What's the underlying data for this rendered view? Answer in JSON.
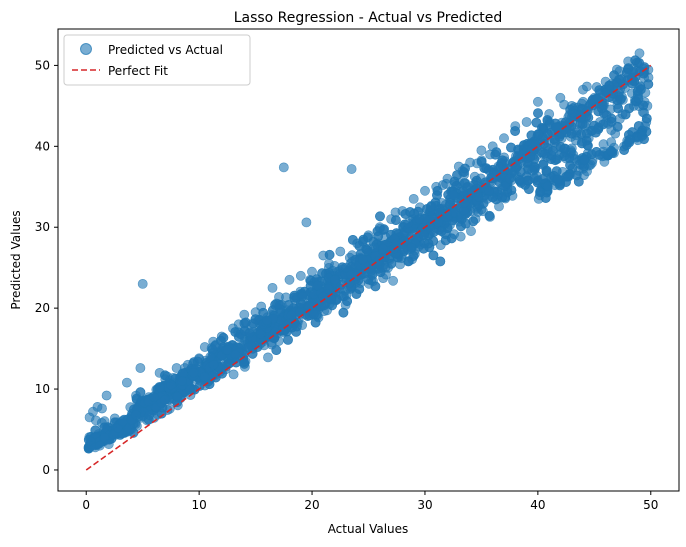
{
  "chart_data": {
    "type": "scatter",
    "title": "Lasso Regression - Actual vs Predicted",
    "xlabel": "Actual Values",
    "ylabel": "Predicted Values",
    "xlim": [
      -2.5,
      52.5
    ],
    "ylim": [
      -2.6,
      54.5
    ],
    "xticks": [
      0,
      10,
      20,
      30,
      40,
      50
    ],
    "yticks": [
      0,
      10,
      20,
      30,
      40,
      50
    ],
    "grid": false,
    "legend": {
      "placement": "top-left",
      "entries": [
        {
          "label": "Predicted vs Actual",
          "kind": "marker",
          "color": "#1f77b4"
        },
        {
          "label": "Perfect Fit",
          "kind": "dashed-line",
          "color": "#d62728"
        }
      ]
    },
    "series": [
      {
        "name": "Predicted vs Actual",
        "color": "#1f77b4",
        "alpha": 0.6,
        "cluster_model": {
          "note": "dense cloud along y ≈ 0.9x + 3 with spread increasing near the top"
        },
        "points": [
          [
            0.3,
            6.5
          ],
          [
            0.6,
            7.2
          ],
          [
            1.0,
            7.8
          ],
          [
            1.4,
            7.6
          ],
          [
            1.8,
            9.2
          ],
          [
            0.4,
            3.5
          ],
          [
            0.8,
            2.8
          ],
          [
            1.2,
            3.0
          ],
          [
            1.6,
            4.0
          ],
          [
            2.0,
            3.2
          ],
          [
            2.4,
            4.4
          ],
          [
            2.8,
            5.2
          ],
          [
            3.2,
            6.0
          ],
          [
            3.6,
            10.8
          ],
          [
            4.0,
            6.2
          ],
          [
            4.4,
            6.8
          ],
          [
            4.8,
            12.6
          ],
          [
            5.0,
            23.0
          ],
          [
            5.5,
            8.5
          ],
          [
            6.0,
            9.0
          ],
          [
            6.5,
            12.0
          ],
          [
            7.0,
            11.2
          ],
          [
            7.5,
            10.5
          ],
          [
            8.0,
            12.6
          ],
          [
            8.5,
            11.0
          ],
          [
            9.0,
            13.0
          ],
          [
            9.5,
            12.0
          ],
          [
            10.0,
            13.8
          ],
          [
            10.5,
            15.2
          ],
          [
            11.0,
            14.0
          ],
          [
            11.5,
            15.5
          ],
          [
            12.0,
            16.5
          ],
          [
            12.5,
            14.8
          ],
          [
            13.0,
            17.5
          ],
          [
            13.5,
            18.0
          ],
          [
            14.0,
            19.2
          ],
          [
            14.5,
            17.0
          ],
          [
            15.0,
            19.5
          ],
          [
            15.5,
            20.2
          ],
          [
            16.0,
            18.5
          ],
          [
            16.5,
            22.5
          ],
          [
            17.0,
            20.5
          ],
          [
            17.5,
            37.4
          ],
          [
            18.0,
            23.5
          ],
          [
            18.5,
            21.0
          ],
          [
            19.0,
            24.0
          ],
          [
            19.5,
            30.6
          ],
          [
            20.0,
            24.5
          ],
          [
            20.5,
            22.8
          ],
          [
            21.0,
            26.5
          ],
          [
            21.5,
            25.5
          ],
          [
            22.0,
            23.5
          ],
          [
            22.5,
            27.0
          ],
          [
            23.0,
            25.0
          ],
          [
            23.5,
            37.2
          ],
          [
            24.0,
            28.0
          ],
          [
            24.5,
            26.0
          ],
          [
            25.0,
            29.0
          ],
          [
            25.5,
            27.5
          ],
          [
            26.0,
            30.0
          ],
          [
            26.5,
            25.0
          ],
          [
            27.0,
            31.0
          ],
          [
            27.5,
            28.0
          ],
          [
            28.0,
            32.0
          ],
          [
            28.5,
            30.5
          ],
          [
            29.0,
            33.5
          ],
          [
            29.5,
            31.0
          ],
          [
            30.0,
            34.5
          ],
          [
            30.5,
            32.5
          ],
          [
            31.0,
            35.0
          ],
          [
            31.5,
            33.0
          ],
          [
            32.0,
            36.0
          ],
          [
            32.5,
            34.0
          ],
          [
            33.0,
            37.5
          ],
          [
            33.5,
            33.0
          ],
          [
            34.0,
            38.0
          ],
          [
            34.5,
            35.5
          ],
          [
            35.0,
            39.5
          ],
          [
            35.5,
            33.5
          ],
          [
            36.0,
            40.0
          ],
          [
            36.5,
            37.5
          ],
          [
            37.0,
            41.0
          ],
          [
            37.5,
            36.0
          ],
          [
            38.0,
            42.5
          ],
          [
            38.5,
            38.0
          ],
          [
            39.0,
            43.0
          ],
          [
            39.5,
            37.0
          ],
          [
            40.0,
            45.5
          ],
          [
            40.5,
            39.0
          ],
          [
            41.0,
            44.0
          ],
          [
            41.5,
            40.5
          ],
          [
            42.0,
            46.0
          ],
          [
            42.5,
            38.5
          ],
          [
            43.0,
            45.0
          ],
          [
            43.5,
            42.0
          ],
          [
            44.0,
            47.0
          ],
          [
            44.5,
            41.0
          ],
          [
            45.0,
            46.0
          ],
          [
            45.5,
            43.0
          ],
          [
            46.0,
            48.0
          ],
          [
            46.5,
            42.0
          ],
          [
            47.0,
            49.5
          ],
          [
            47.5,
            44.0
          ],
          [
            48.0,
            50.5
          ],
          [
            48.5,
            45.0
          ],
          [
            49.0,
            51.5
          ],
          [
            49.5,
            42.5
          ],
          [
            49.7,
            45.0
          ],
          [
            49.8,
            48.5
          ],
          [
            49.6,
            43.0
          ]
        ]
      },
      {
        "name": "Perfect Fit",
        "color": "#d62728",
        "style": "dashed",
        "x": [
          0,
          50
        ],
        "y": [
          0,
          50
        ]
      }
    ]
  }
}
